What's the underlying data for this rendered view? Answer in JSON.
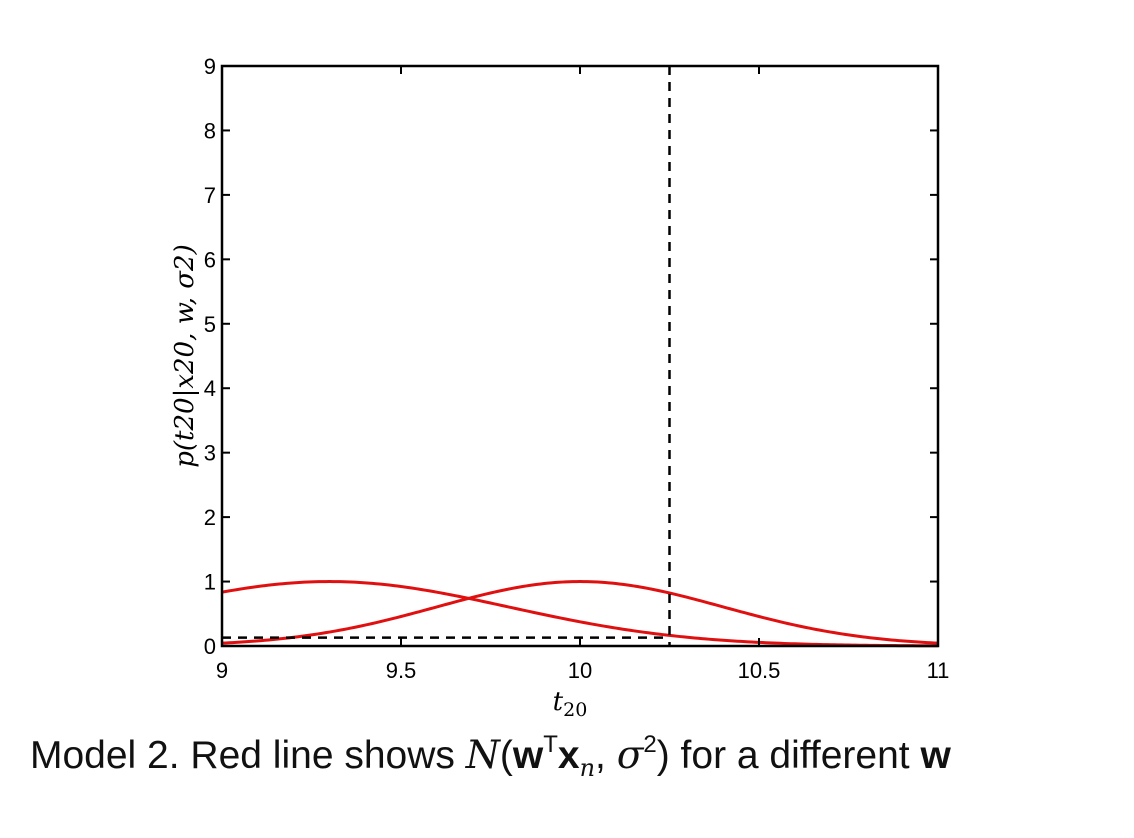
{
  "chart_data": {
    "type": "line",
    "xlabel": "t20",
    "ylabel": "p(t20|x20, w, σ2)",
    "xlim": [
      9,
      11
    ],
    "ylim": [
      0,
      9
    ],
    "xticks": [
      9,
      9.5,
      10,
      10.5,
      11
    ],
    "xtick_labels": [
      "9",
      "9.5",
      "10",
      "10.5",
      "11"
    ],
    "yticks": [
      0,
      1,
      2,
      3,
      4,
      5,
      6,
      7,
      8,
      9
    ],
    "ytick_labels": [
      "0",
      "1",
      "2",
      "3",
      "4",
      "5",
      "6",
      "7",
      "8",
      "9"
    ],
    "grid": false,
    "series": [
      {
        "color": "#e01010",
        "style": "solid",
        "mean": 10.0,
        "sigma": 0.4
      },
      {
        "color": "#e01010",
        "style": "solid",
        "mean": 9.3,
        "sigma": 0.5
      }
    ],
    "markers": {
      "vertical_line_x": 10.25,
      "horizontal_line_y": 0.13,
      "color": "#000000",
      "style": "dashed"
    }
  },
  "caption": {
    "prefix": "Model 2. Red line shows ",
    "normal_symbol": "N",
    "open_paren": "(",
    "w": "w",
    "transpose": "T",
    "x": "x",
    "sub_n": "n",
    "comma": ", ",
    "sigma": "σ",
    "sq": "2",
    "close_paren": ")",
    "suffix": " for a different ",
    "w_end": "w"
  }
}
